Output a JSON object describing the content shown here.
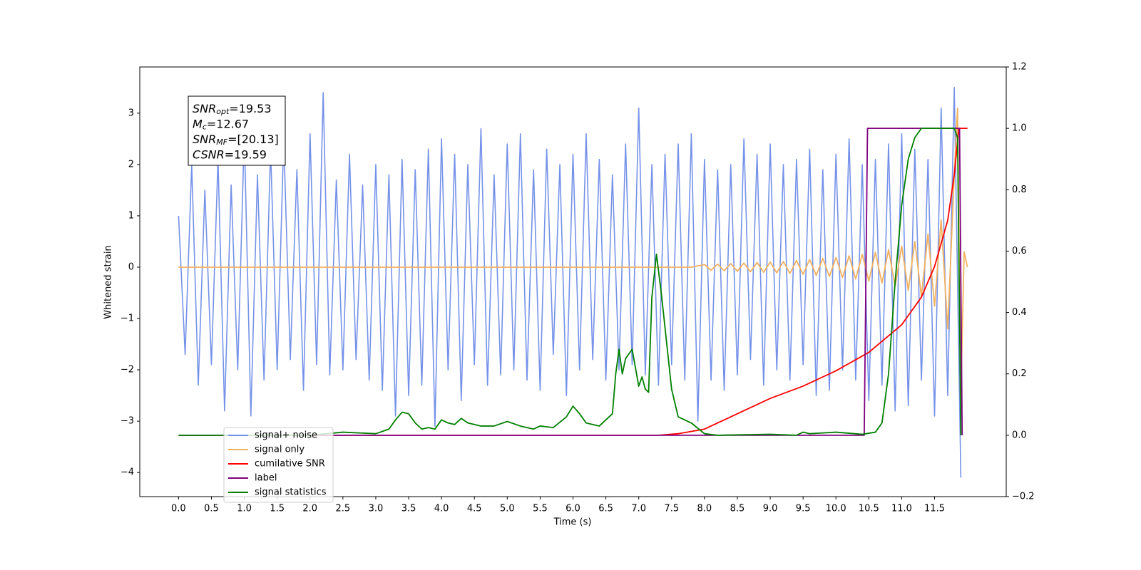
{
  "chart_data": {
    "type": "line",
    "x_label": "Time (s)",
    "y_label": "Whitened strain",
    "xlim": [
      -0.59,
      12.59
    ],
    "ylim": [
      -4.47,
      3.9
    ],
    "y2lim": [
      -0.2,
      1.2
    ],
    "xticks": [
      {
        "value": 0,
        "label": "0.0"
      },
      0.5,
      {
        "value": 1,
        "label": "1.0"
      },
      1.5,
      {
        "value": 2,
        "label": "2.0"
      },
      2.5,
      {
        "value": 3,
        "label": "3.0"
      },
      3.5,
      {
        "value": 4,
        "label": "4.0"
      },
      4.5,
      {
        "value": 5,
        "label": "5.0"
      },
      5.5,
      {
        "value": 6,
        "label": "6.0"
      },
      6.5,
      {
        "value": 7,
        "label": "7.0"
      },
      7.5,
      {
        "value": 8,
        "label": "8.0"
      },
      8.5,
      {
        "value": 9,
        "label": "9.0"
      },
      9.5,
      {
        "value": 10,
        "label": "10.0"
      },
      10.5,
      {
        "value": 11,
        "label": "11.0"
      },
      11.5
    ],
    "yticks": [
      {
        "value": -4,
        "label": "−4"
      },
      {
        "value": -3,
        "label": "−3"
      },
      {
        "value": -2,
        "label": "−2"
      },
      {
        "value": -1,
        "label": "−1"
      },
      0,
      1,
      2,
      3
    ],
    "y2ticks": [
      {
        "value": -0.2,
        "label": "−0.2"
      },
      {
        "value": 0,
        "label": "0.0"
      },
      0.2,
      0.4,
      0.6,
      0.8,
      {
        "value": 1,
        "label": "1.0"
      },
      1.2
    ],
    "legend_loc": "lower left",
    "annotation": [
      {
        "main": "SNR",
        "sub": "opt",
        "rest": "=19.53"
      },
      {
        "main": "M",
        "sub": "c",
        "rest": "=12.67"
      },
      {
        "main": "SNR",
        "sub": "MF",
        "rest": "=[20.13]"
      },
      {
        "main": "CSNR",
        "rest": "=19.59"
      }
    ],
    "series": [
      {
        "name": "signal+ noise",
        "color": "#7592e8",
        "axis": "y",
        "x": [
          0.0,
          0.1,
          0.2,
          0.3,
          0.4,
          0.5,
          0.6,
          0.7,
          0.8,
          0.9,
          1.0,
          1.1,
          1.2,
          1.3,
          1.4,
          1.5,
          1.6,
          1.7,
          1.8,
          1.9,
          2.0,
          2.1,
          2.2,
          2.3,
          2.4,
          2.5,
          2.6,
          2.7,
          2.8,
          2.9,
          3.0,
          3.1,
          3.2,
          3.3,
          3.4,
          3.5,
          3.6,
          3.7,
          3.8,
          3.9,
          4.0,
          4.1,
          4.2,
          4.3,
          4.4,
          4.5,
          4.6,
          4.7,
          4.8,
          4.9,
          5.0,
          5.1,
          5.2,
          5.3,
          5.4,
          5.5,
          5.6,
          5.7,
          5.8,
          5.9,
          6.0,
          6.1,
          6.2,
          6.3,
          6.4,
          6.5,
          6.6,
          6.7,
          6.8,
          6.9,
          7.0,
          7.1,
          7.2,
          7.3,
          7.4,
          7.5,
          7.6,
          7.7,
          7.8,
          7.9,
          8.0,
          8.1,
          8.2,
          8.3,
          8.4,
          8.5,
          8.6,
          8.7,
          8.8,
          8.9,
          9.0,
          9.1,
          9.2,
          9.3,
          9.4,
          9.5,
          9.6,
          9.7,
          9.8,
          9.9,
          10.0,
          10.1,
          10.2,
          10.3,
          10.4,
          10.5,
          10.6,
          10.7,
          10.8,
          10.9,
          11.0,
          11.1,
          11.2,
          11.3,
          11.4,
          11.5,
          11.6,
          11.7,
          11.8,
          11.9
        ],
        "values": [
          1.0,
          -1.7,
          2.0,
          -2.3,
          1.5,
          -1.9,
          2.1,
          -2.8,
          1.6,
          -2.0,
          2.6,
          -2.9,
          1.8,
          -2.2,
          2.3,
          -2.0,
          2.5,
          -1.8,
          1.9,
          -2.4,
          2.6,
          -1.9,
          3.4,
          -2.1,
          1.7,
          -2.0,
          2.2,
          -1.8,
          1.6,
          -2.2,
          2.0,
          -2.4,
          1.8,
          -2.9,
          2.1,
          -2.5,
          1.9,
          -2.3,
          2.3,
          -3.1,
          2.5,
          -2.0,
          2.2,
          -2.6,
          2.0,
          -1.9,
          2.7,
          -2.3,
          1.8,
          -2.1,
          2.4,
          -2.0,
          2.6,
          -2.2,
          1.9,
          -2.4,
          2.3,
          -1.7,
          2.0,
          -2.5,
          2.2,
          -2.0,
          2.6,
          -1.8,
          2.1,
          -2.2,
          1.8,
          -2.0,
          2.4,
          -1.9,
          3.1,
          -2.1,
          2.0,
          -2.3,
          2.2,
          -1.9,
          2.4,
          -2.2,
          2.6,
          -3.0,
          2.1,
          -2.2,
          1.9,
          -2.4,
          2.0,
          -2.1,
          2.5,
          -1.8,
          2.2,
          -2.3,
          2.4,
          -2.0,
          2.0,
          -2.2,
          2.1,
          -1.9,
          2.3,
          -2.5,
          1.9,
          -2.4,
          2.2,
          -2.0,
          2.5,
          -2.2,
          2.0,
          -2.6,
          2.1,
          -2.3,
          2.4,
          -2.8,
          2.6,
          -2.7,
          2.3,
          -2.2,
          2.1,
          -2.9,
          3.1,
          -2.5,
          3.5,
          -4.1
        ]
      },
      {
        "name": "signal only",
        "color": "#f2b15e",
        "axis": "y",
        "x": [
          0.0,
          7.8,
          8.0,
          8.1,
          8.2,
          8.3,
          8.4,
          8.5,
          8.6,
          8.7,
          8.8,
          8.9,
          9.0,
          9.1,
          9.2,
          9.3,
          9.4,
          9.5,
          9.6,
          9.7,
          9.8,
          9.9,
          10.0,
          10.1,
          10.2,
          10.3,
          10.4,
          10.5,
          10.6,
          10.7,
          10.8,
          10.9,
          11.0,
          11.1,
          11.2,
          11.3,
          11.4,
          11.5,
          11.6,
          11.7,
          11.8,
          11.85,
          11.9,
          11.95,
          12.0
        ],
        "values": [
          0,
          0,
          0.05,
          -0.06,
          0.06,
          -0.07,
          0.07,
          -0.08,
          0.08,
          -0.09,
          0.09,
          -0.1,
          0.1,
          -0.11,
          0.11,
          -0.12,
          0.13,
          -0.14,
          0.15,
          -0.16,
          0.17,
          -0.18,
          0.19,
          -0.2,
          0.22,
          -0.23,
          0.25,
          -0.27,
          0.29,
          -0.31,
          0.34,
          -0.37,
          0.41,
          -0.45,
          0.5,
          -0.57,
          0.65,
          -0.76,
          0.92,
          -1.2,
          1.8,
          3.1,
          -2.5,
          0.3,
          0
        ]
      },
      {
        "name": "cumilative SNR",
        "color": "#ff0000",
        "axis": "y2",
        "x": [
          0.0,
          7.3,
          7.6,
          8.0,
          8.5,
          9.0,
          9.5,
          10.0,
          10.5,
          11.0,
          11.3,
          11.5,
          11.7,
          11.8,
          11.87,
          11.9,
          12.0
        ],
        "values": [
          0,
          0,
          0.005,
          0.02,
          0.07,
          0.12,
          0.16,
          0.21,
          0.27,
          0.36,
          0.45,
          0.55,
          0.7,
          0.85,
          1.0,
          1.0,
          1.0
        ]
      },
      {
        "name": "label",
        "color": "#800080",
        "axis": "y2",
        "x": [
          0.0,
          10.43,
          10.48,
          11.88,
          11.92
        ],
        "values": [
          0,
          0,
          1,
          1,
          0
        ]
      },
      {
        "name": "signal statistics",
        "color": "#008000",
        "axis": "y2",
        "x": [
          0.0,
          2.0,
          2.5,
          3.0,
          3.2,
          3.3,
          3.4,
          3.5,
          3.6,
          3.7,
          3.8,
          3.9,
          4.0,
          4.1,
          4.2,
          4.3,
          4.4,
          4.5,
          4.6,
          4.8,
          5.0,
          5.2,
          5.4,
          5.5,
          5.7,
          5.9,
          6.0,
          6.1,
          6.2,
          6.4,
          6.6,
          6.65,
          6.7,
          6.75,
          6.8,
          6.9,
          7.0,
          7.05,
          7.1,
          7.15,
          7.2,
          7.27,
          7.35,
          7.5,
          7.6,
          7.8,
          8.0,
          8.2,
          9.0,
          9.4,
          9.5,
          9.6,
          10.0,
          10.4,
          10.6,
          10.7,
          10.8,
          10.9,
          11.0,
          11.1,
          11.2,
          11.3,
          11.8,
          11.85,
          11.9
        ],
        "values": [
          0,
          0,
          0.01,
          0.005,
          0.02,
          0.05,
          0.075,
          0.07,
          0.04,
          0.02,
          0.025,
          0.02,
          0.05,
          0.04,
          0.035,
          0.055,
          0.04,
          0.035,
          0.03,
          0.03,
          0.045,
          0.03,
          0.02,
          0.03,
          0.025,
          0.06,
          0.095,
          0.07,
          0.04,
          0.03,
          0.07,
          0.2,
          0.28,
          0.2,
          0.25,
          0.28,
          0.16,
          0.19,
          0.15,
          0.14,
          0.45,
          0.59,
          0.45,
          0.15,
          0.06,
          0.04,
          0.005,
          0,
          0.003,
          0,
          0.01,
          0.005,
          0.01,
          0.003,
          0.01,
          0.04,
          0.2,
          0.5,
          0.75,
          0.9,
          0.97,
          1.0,
          1.0,
          0.97,
          0
        ]
      }
    ]
  }
}
